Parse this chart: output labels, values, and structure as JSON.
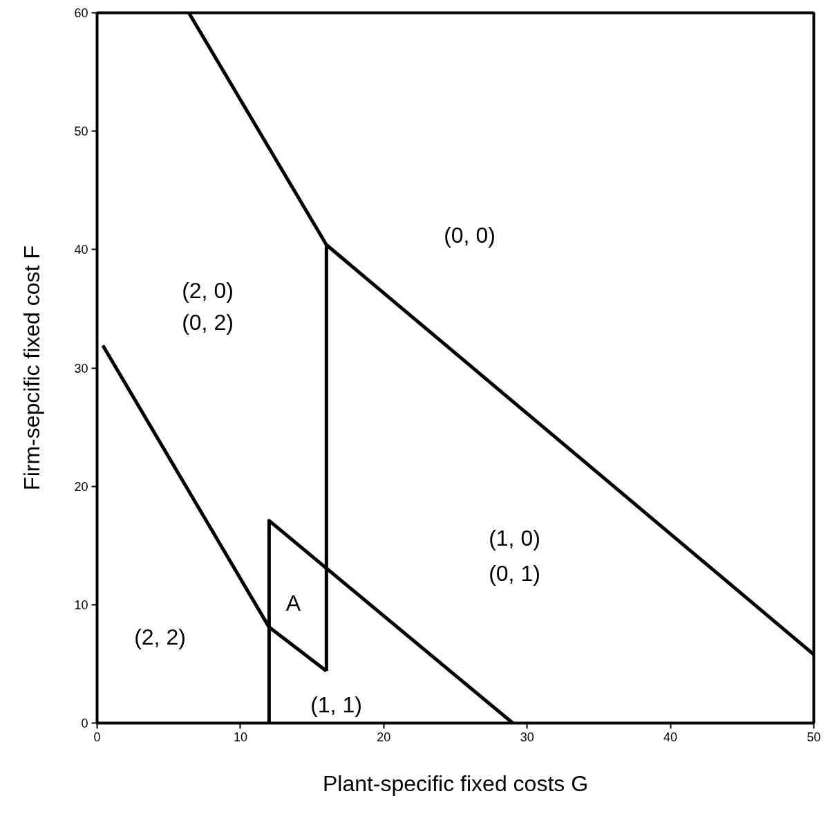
{
  "chart_data": {
    "type": "line",
    "xlabel": "Plant-specific fixed costs G",
    "ylabel": "Firm-sepcific fixed cost F",
    "xlim": [
      0,
      50
    ],
    "ylim": [
      0,
      60
    ],
    "xticks": [
      0,
      10,
      20,
      30,
      40,
      50
    ],
    "yticks": [
      0,
      10,
      20,
      30,
      40,
      50,
      60
    ],
    "grid": false,
    "marker": "none",
    "line_style": "solid",
    "series": [
      {
        "color": "#000000",
        "x": [
          6.4,
          16,
          50
        ],
        "values": [
          60,
          40.4,
          5.8
        ]
      },
      {
        "color": "#000000",
        "x": [
          16,
          16
        ],
        "values": [
          40.4,
          4.4
        ]
      },
      {
        "color": "#000000",
        "x": [
          0.4,
          12,
          16
        ],
        "values": [
          31.9,
          8.1,
          4.4
        ]
      },
      {
        "color": "#000000",
        "x": [
          12,
          12,
          29
        ],
        "values": [
          0,
          17.1,
          0
        ]
      }
    ],
    "annotations": [
      "(0, 0)",
      "(2, 0)",
      "(0, 2)",
      "(1, 0)",
      "(0, 1)",
      "A",
      "(2, 2)",
      "(1, 1)"
    ]
  }
}
